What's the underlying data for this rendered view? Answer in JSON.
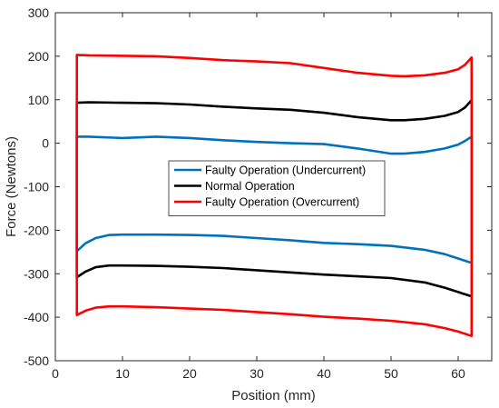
{
  "chart_data": {
    "type": "line",
    "title": "",
    "xlabel": "Position (mm)",
    "ylabel": "Force (Newtons)",
    "xlim": [
      0,
      65
    ],
    "ylim": [
      -500,
      300
    ],
    "xticks": [
      0,
      10,
      20,
      30,
      40,
      50,
      60
    ],
    "yticks": [
      -500,
      -400,
      -300,
      -200,
      -100,
      0,
      100,
      200,
      300
    ],
    "grid": false,
    "legend_position": "center",
    "series": [
      {
        "name": "Faulty Operation (Undercurrent)",
        "color": "#0072BD",
        "points": [
          [
            3.2,
            -248
          ],
          [
            4.5,
            -230
          ],
          [
            6,
            -218
          ],
          [
            8,
            -211
          ],
          [
            10,
            -210
          ],
          [
            15,
            -210
          ],
          [
            20,
            -211
          ],
          [
            25,
            -213
          ],
          [
            30,
            -218
          ],
          [
            35,
            -223
          ],
          [
            40,
            -229
          ],
          [
            45,
            -232
          ],
          [
            50,
            -236
          ],
          [
            55,
            -245
          ],
          [
            58,
            -255
          ],
          [
            60,
            -265
          ],
          [
            62,
            -275
          ],
          [
            62,
            15
          ],
          [
            61,
            5
          ],
          [
            60,
            -3
          ],
          [
            58,
            -12
          ],
          [
            55,
            -20
          ],
          [
            52,
            -24
          ],
          [
            50,
            -24
          ],
          [
            45,
            -12
          ],
          [
            40,
            -2
          ],
          [
            35,
            0
          ],
          [
            30,
            3
          ],
          [
            25,
            7
          ],
          [
            20,
            12
          ],
          [
            15,
            15
          ],
          [
            10,
            12
          ],
          [
            5,
            15
          ],
          [
            3.2,
            15
          ]
        ]
      },
      {
        "name": "Normal Operation",
        "color": "#000000",
        "points": [
          [
            3.2,
            -308
          ],
          [
            4.5,
            -295
          ],
          [
            6,
            -285
          ],
          [
            8,
            -281
          ],
          [
            10,
            -281
          ],
          [
            15,
            -282
          ],
          [
            20,
            -284
          ],
          [
            25,
            -287
          ],
          [
            30,
            -292
          ],
          [
            35,
            -297
          ],
          [
            40,
            -302
          ],
          [
            45,
            -306
          ],
          [
            50,
            -310
          ],
          [
            55,
            -320
          ],
          [
            58,
            -332
          ],
          [
            60,
            -342
          ],
          [
            62,
            -352
          ],
          [
            62,
            99
          ],
          [
            61,
            82
          ],
          [
            60,
            72
          ],
          [
            58,
            63
          ],
          [
            55,
            56
          ],
          [
            52,
            53
          ],
          [
            50,
            53
          ],
          [
            45,
            60
          ],
          [
            40,
            70
          ],
          [
            35,
            77
          ],
          [
            30,
            80
          ],
          [
            25,
            84
          ],
          [
            20,
            89
          ],
          [
            15,
            92
          ],
          [
            10,
            93
          ],
          [
            5,
            94
          ],
          [
            3.2,
            93
          ]
        ]
      },
      {
        "name": "Faulty Operation (Overcurrent)",
        "color": "#FF0000",
        "points": [
          [
            3.2,
            -395
          ],
          [
            4.5,
            -385
          ],
          [
            6,
            -378
          ],
          [
            8,
            -375
          ],
          [
            10,
            -375
          ],
          [
            15,
            -377
          ],
          [
            20,
            -380
          ],
          [
            25,
            -383
          ],
          [
            30,
            -388
          ],
          [
            35,
            -393
          ],
          [
            40,
            -399
          ],
          [
            45,
            -403
          ],
          [
            50,
            -408
          ],
          [
            55,
            -416
          ],
          [
            58,
            -425
          ],
          [
            60,
            -433
          ],
          [
            62,
            -443
          ],
          [
            62,
            197
          ],
          [
            61,
            180
          ],
          [
            60,
            170
          ],
          [
            58,
            162
          ],
          [
            55,
            156
          ],
          [
            52,
            154
          ],
          [
            50,
            155
          ],
          [
            45,
            162
          ],
          [
            40,
            173
          ],
          [
            35,
            184
          ],
          [
            30,
            188
          ],
          [
            25,
            191
          ],
          [
            20,
            196
          ],
          [
            15,
            200
          ],
          [
            10,
            201
          ],
          [
            5,
            202
          ],
          [
            3.2,
            203
          ]
        ],
        "closed": true
      }
    ]
  }
}
